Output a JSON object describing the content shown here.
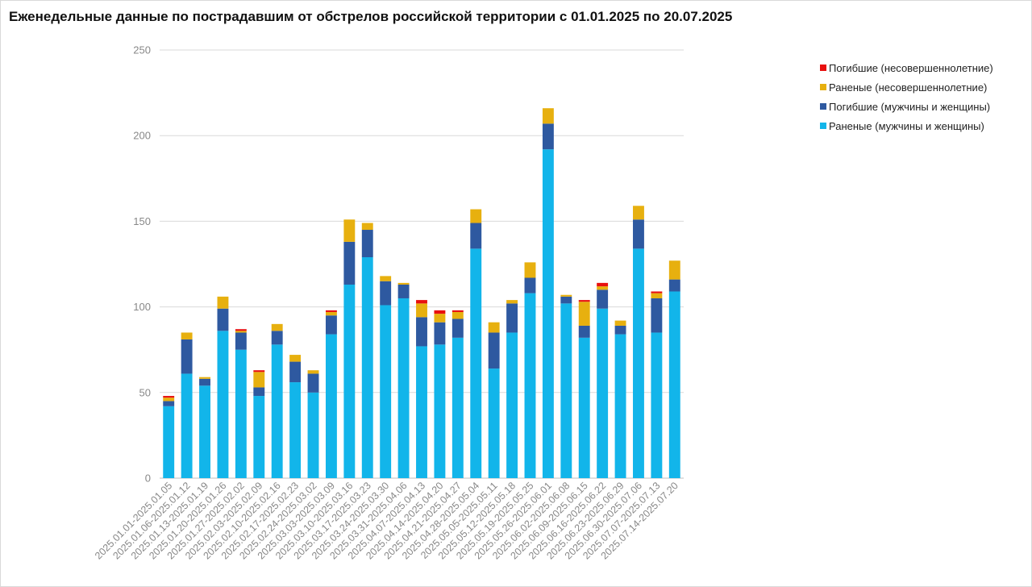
{
  "chart_data": {
    "type": "bar",
    "stacked": true,
    "title": "Еженедельные данные по пострадавшим от обстрелов российской территории с 01.01.2025 по 20.07.2025",
    "xlabel": "",
    "ylabel": "",
    "ylim": [
      0,
      250
    ],
    "yticks": [
      0,
      50,
      100,
      150,
      200,
      250
    ],
    "grid": true,
    "legend_position": "top-right",
    "categories": [
      "2025.01.01-2025.01.05",
      "2025.01.06-2025.01.12",
      "2025.01.13-2025.01.19",
      "2025.01.20-2025.01.26",
      "2025.01.27-2025.02.02",
      "2025.02.03-2025.02.09",
      "2025.02.10-2025.02.16",
      "2025.02.17-2025.02.23",
      "2025.02.24-2025.03.02",
      "2025.03.03-2025.03.09",
      "2025.03.10-2025.03.16",
      "2025.03.17-2025.03.23",
      "2025.03.24-2025.03.30",
      "2025.03.31-2025.04.06",
      "2025.04.07-2025.04.13",
      "2025.04.14-2025.04.20",
      "2025.04.21-2025.04.27",
      "2025.04.28-2025.05.04",
      "2025.05.05-2025.05.11",
      "2025.05.12-2025.05.18",
      "2025.05.19-2025.05.25",
      "2025.05.26-2025.06.01",
      "2025.06.02-2025.06.08",
      "2025.06.09-2025.06.15",
      "2025.06.16-2025.06.22",
      "2025.06.23-2025.06.29",
      "2025.06.30-2025.07.06",
      "2025.07.07-2025.07.13",
      "2025.07.14-2025.07.20"
    ],
    "series": [
      {
        "name": "Раненые (мужчины и женщины)",
        "color": "#12b5ea",
        "values": [
          42,
          61,
          54,
          86,
          75,
          48,
          78,
          56,
          50,
          84,
          113,
          129,
          101,
          105,
          77,
          78,
          82,
          134,
          64,
          85,
          108,
          192,
          102,
          82,
          99,
          84,
          134,
          85,
          109
        ]
      },
      {
        "name": "Погибшие (мужчины и женщины)",
        "color": "#2e59a0",
        "values": [
          3,
          20,
          4,
          13,
          10,
          5,
          8,
          12,
          11,
          11,
          25,
          16,
          14,
          8,
          17,
          13,
          11,
          15,
          21,
          17,
          9,
          15,
          4,
          7,
          11,
          5,
          17,
          20,
          7
        ]
      },
      {
        "name": "Раненые (несовершеннолетние)",
        "color": "#e7b00f",
        "values": [
          2,
          4,
          1,
          7,
          1,
          9,
          4,
          4,
          2,
          2,
          13,
          4,
          3,
          1,
          8,
          5,
          4,
          8,
          6,
          2,
          9,
          9,
          1,
          14,
          2,
          3,
          8,
          3,
          11
        ]
      },
      {
        "name": "Погибшие (несовершеннолетние)",
        "color": "#e8100f",
        "values": [
          1,
          0,
          0,
          0,
          1,
          1,
          0,
          0,
          0,
          1,
          0,
          0,
          0,
          0,
          2,
          2,
          1,
          0,
          0,
          0,
          0,
          0,
          0,
          1,
          2,
          0,
          0,
          1,
          0
        ]
      }
    ],
    "legend_order": [
      3,
      2,
      1,
      0
    ]
  }
}
